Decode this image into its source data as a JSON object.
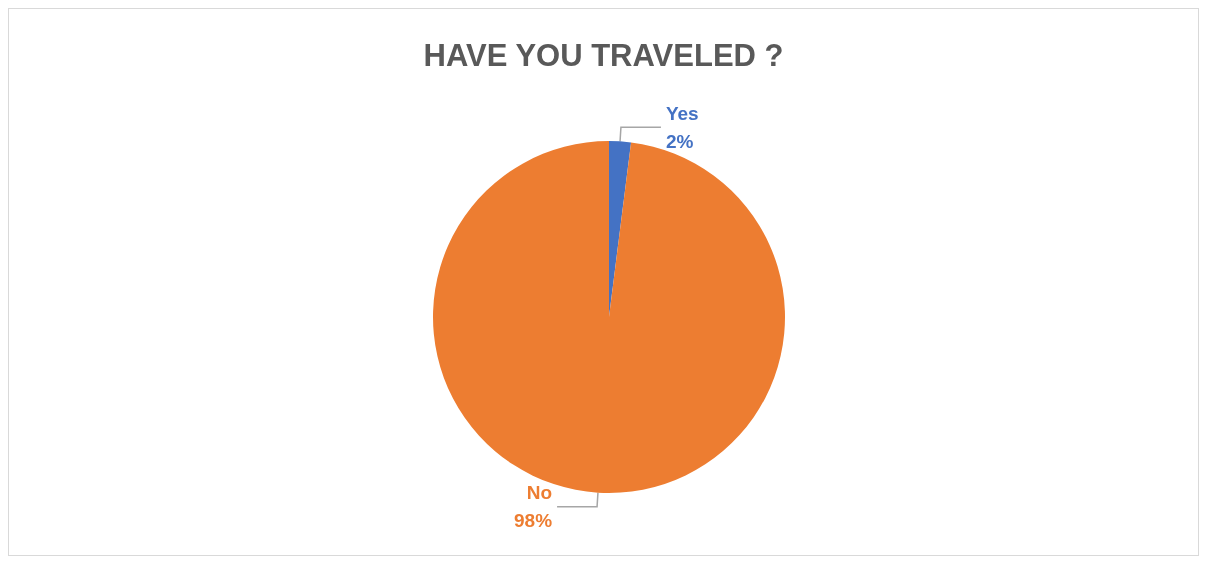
{
  "chart_data": {
    "type": "pie",
    "title": "HAVE YOU TRAVELED ?",
    "categories": [
      "Yes",
      "No"
    ],
    "values": [
      2,
      98
    ],
    "colors": [
      "#4472c4",
      "#ed7d31"
    ],
    "value_labels": [
      "2%",
      "98%"
    ],
    "legend": false
  }
}
